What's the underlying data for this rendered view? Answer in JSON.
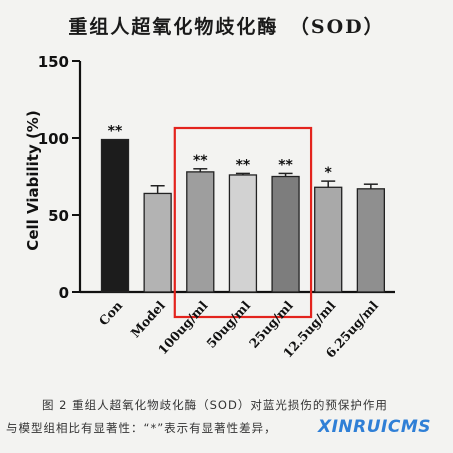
{
  "chart_data": {
    "type": "bar",
    "title": "重组人超氧化物歧化酶　（SOD）",
    "ylabel": "Cell Viability (%)",
    "xlabel": "",
    "ylim": [
      0,
      150
    ],
    "yticks": [
      0,
      50,
      100,
      150
    ],
    "categories": [
      "Con",
      "Model",
      "100ug/ml",
      "50ug/ml",
      "25ug/ml",
      "12.5ug/ml",
      "6.25ug/ml"
    ],
    "values": [
      99,
      64,
      78,
      76,
      75,
      68,
      67
    ],
    "errors": [
      0,
      5,
      2,
      1,
      2,
      4,
      3
    ],
    "significance": [
      "**",
      "",
      "**",
      "**",
      "**",
      "*",
      ""
    ],
    "bar_colors": [
      "#1c1c1c",
      "#b3b3b3",
      "#9e9e9e",
      "#d2d2d2",
      "#7d7d7d",
      "#a9a9a9",
      "#8f8f8f"
    ],
    "highlight_box": {
      "color": "#e3231d"
    }
  },
  "caption": {
    "line1": "图 2 重组人超氧化物歧化酶（SOD）对蓝光损伤的预保护作用",
    "line2": "与模型组相比有显著性：“*”表示有显著性差异，"
  },
  "watermark": "XINRUICMS"
}
